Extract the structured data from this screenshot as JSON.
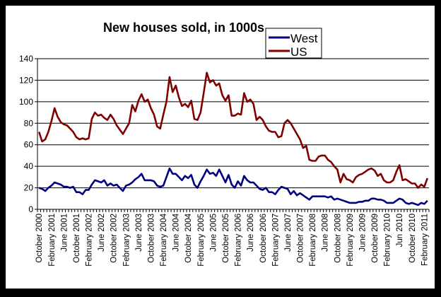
{
  "chart_data": {
    "type": "line",
    "title": "New houses sold, in 1000s",
    "xlabel": "",
    "ylabel": "",
    "ylim": [
      0,
      140
    ],
    "yticks": [
      0,
      20,
      40,
      60,
      80,
      100,
      120,
      140
    ],
    "grid": true,
    "legend_position": "top-right",
    "x_start": "October 2000",
    "x_interval": "monthly",
    "xtick_labels": [
      "October 2000",
      "February 2001",
      "June 2001",
      "October 2001",
      "February 2002",
      "June 2002",
      "October 2002",
      "February 2003",
      "June 2003",
      "October 2003",
      "February 2004",
      "June 2004",
      "October 2004",
      "February 2005",
      "June 2005",
      "October 2005",
      "February 2006",
      "June 2006",
      "October 2006",
      "February 2007",
      "June 2007",
      "October 2007",
      "February 2008",
      "June 2008",
      "October 2008",
      "February 2009",
      "June 2009",
      "October 2009",
      "February 2010",
      "Jun 2010",
      "October 2010",
      "February 2011"
    ],
    "series": [
      {
        "name": "West",
        "color": "#000080",
        "values": [
          20,
          19,
          17,
          20,
          22,
          25,
          24,
          23,
          21,
          21,
          20,
          21,
          16,
          16,
          14,
          18,
          18,
          23,
          27,
          26,
          25,
          27,
          22,
          24,
          22,
          23,
          20,
          17,
          22,
          23,
          25,
          28,
          30,
          33,
          27,
          27,
          27,
          26,
          22,
          21,
          22,
          30,
          38,
          33,
          33,
          30,
          27,
          31,
          29,
          32,
          23,
          20,
          26,
          31,
          37,
          33,
          34,
          31,
          37,
          31,
          25,
          32,
          23,
          20,
          26,
          22,
          31,
          27,
          25,
          25,
          22,
          19,
          18,
          20,
          16,
          16,
          14,
          18,
          21,
          20,
          19,
          14,
          17,
          13,
          15,
          13,
          11,
          9,
          12,
          12,
          12,
          12,
          12,
          11,
          12,
          9,
          10,
          9,
          8,
          7,
          6,
          6,
          6,
          7,
          7,
          8,
          8,
          10,
          10,
          9,
          9,
          8,
          6,
          6,
          6,
          8,
          10,
          9,
          6,
          5,
          6,
          5,
          4,
          6,
          5,
          8
        ]
      },
      {
        "name": "US",
        "color": "#800000",
        "values": [
          72,
          63,
          65,
          72,
          82,
          94,
          86,
          81,
          79,
          78,
          75,
          72,
          67,
          65,
          66,
          65,
          66,
          84,
          90,
          87,
          88,
          85,
          83,
          88,
          84,
          78,
          74,
          70,
          75,
          80,
          97,
          91,
          101,
          107,
          100,
          102,
          94,
          88,
          77,
          75,
          88,
          100,
          123,
          109,
          115,
          104,
          96,
          98,
          95,
          101,
          84,
          83,
          90,
          108,
          127,
          118,
          120,
          115,
          117,
          106,
          101,
          106,
          87,
          87,
          89,
          88,
          108,
          100,
          102,
          98,
          83,
          86,
          83,
          77,
          73,
          72,
          72,
          67,
          68,
          80,
          83,
          80,
          75,
          70,
          65,
          57,
          59,
          46,
          45,
          45,
          49,
          50,
          50,
          46,
          44,
          40,
          37,
          25,
          33,
          28,
          27,
          25,
          30,
          32,
          33,
          35,
          37,
          38,
          36,
          31,
          33,
          27,
          25,
          25,
          27,
          35,
          41,
          27,
          28,
          26,
          24,
          24,
          20,
          23,
          21,
          29
        ]
      }
    ]
  }
}
